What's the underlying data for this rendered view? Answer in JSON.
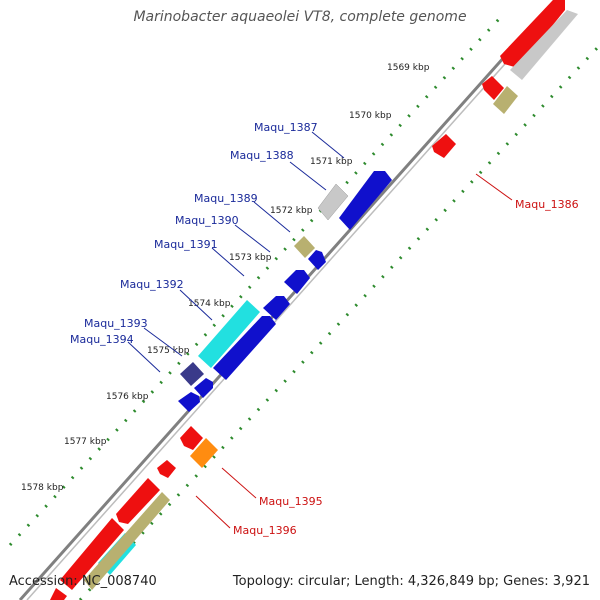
{
  "title": "Marinobacter aquaeolei VT8, complete genome",
  "footer": {
    "accession": "Accession: NC_008740",
    "summary": "Topology: circular; Length: 4,326,849 bp; Genes: 3,921"
  },
  "colors": {
    "backbone": "#777777",
    "dots": "#2e8b2e",
    "label_plus": "#1a2a9a",
    "label_minus": "#cc1111"
  },
  "kbp_ticks": [
    "1569 kbp",
    "1570 kbp",
    "1571 kbp",
    "1572 kbp",
    "1573 kbp",
    "1574 kbp",
    "1575 kbp",
    "1576 kbp",
    "1577 kbp",
    "1578 kbp"
  ],
  "gene_labels": [
    {
      "name": "Maqu_1387",
      "strand": "plus"
    },
    {
      "name": "Maqu_1388",
      "strand": "plus"
    },
    {
      "name": "Maqu_1389",
      "strand": "plus"
    },
    {
      "name": "Maqu_1390",
      "strand": "plus"
    },
    {
      "name": "Maqu_1391",
      "strand": "plus"
    },
    {
      "name": "Maqu_1392",
      "strand": "plus"
    },
    {
      "name": "Maqu_1393",
      "strand": "plus"
    },
    {
      "name": "Maqu_1394",
      "strand": "plus"
    },
    {
      "name": "Maqu_1386",
      "strand": "minus"
    },
    {
      "name": "Maqu_1395",
      "strand": "minus"
    },
    {
      "name": "Maqu_1396",
      "strand": "minus"
    }
  ]
}
